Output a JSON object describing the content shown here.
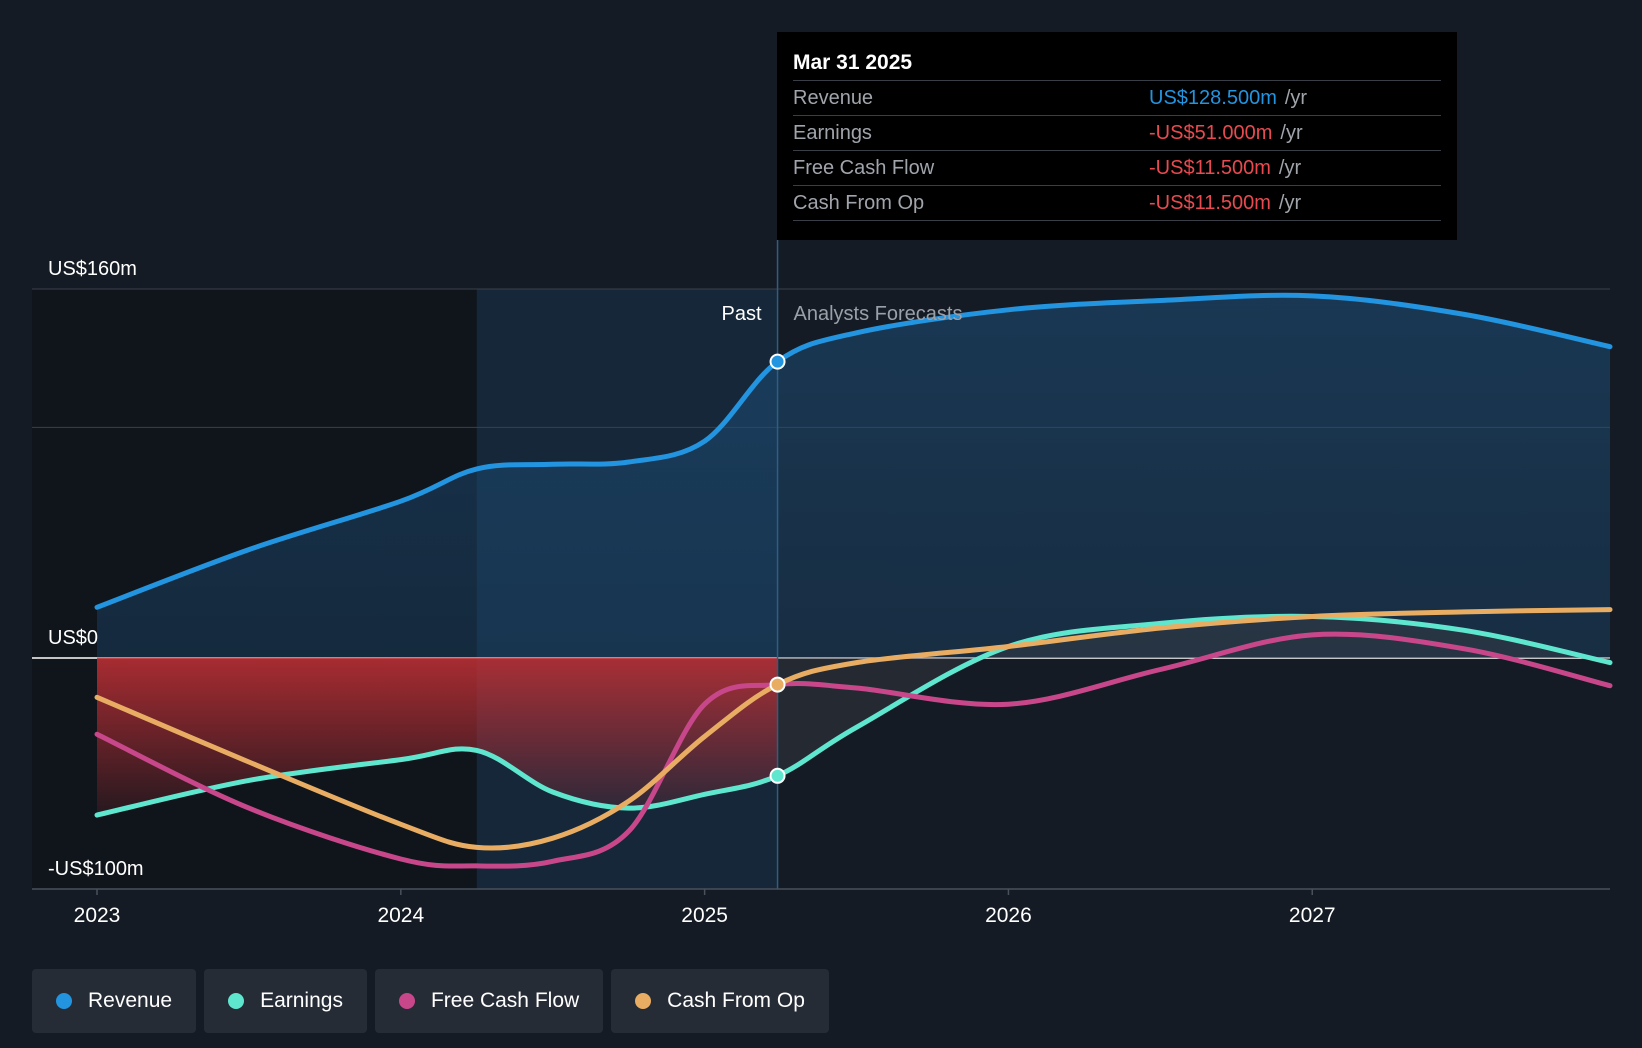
{
  "chart_data": {
    "type": "line",
    "x_unit": "year",
    "xlim": [
      2023,
      2027.98
    ],
    "ylim": [
      -100,
      160
    ],
    "y_ticks": [
      {
        "value": 160,
        "label": "US$160m"
      },
      {
        "value": 0,
        "label": "US$0"
      },
      {
        "value": -100,
        "label": "-US$100m"
      }
    ],
    "x_ticks": [
      {
        "value": 2023,
        "label": "2023"
      },
      {
        "value": 2024,
        "label": "2024"
      },
      {
        "value": 2025,
        "label": "2025"
      },
      {
        "value": 2026,
        "label": "2026"
      },
      {
        "value": 2027,
        "label": "2027"
      }
    ],
    "gridlines_y": [
      160,
      100,
      0,
      -100
    ],
    "past_label": "Past",
    "forecast_label": "Analysts Forecasts",
    "past_shade_start": 2024.25,
    "divider_x": 2025.24,
    "series": [
      {
        "name": "Revenue",
        "color": "#2394df",
        "points": [
          [
            2023,
            22
          ],
          [
            2023.5,
            47
          ],
          [
            2024,
            68
          ],
          [
            2024.25,
            82
          ],
          [
            2024.5,
            84
          ],
          [
            2024.75,
            85
          ],
          [
            2025,
            94
          ],
          [
            2025.24,
            128.5
          ],
          [
            2025.5,
            141
          ],
          [
            2026,
            151
          ],
          [
            2026.5,
            155
          ],
          [
            2027,
            157
          ],
          [
            2027.5,
            149
          ],
          [
            2027.98,
            135
          ]
        ]
      },
      {
        "name": "Earnings",
        "color": "#5fe6cf",
        "points": [
          [
            2023,
            -68
          ],
          [
            2023.5,
            -53
          ],
          [
            2024,
            -44
          ],
          [
            2024.25,
            -40
          ],
          [
            2024.5,
            -58
          ],
          [
            2024.75,
            -65
          ],
          [
            2025,
            -59
          ],
          [
            2025.24,
            -51
          ],
          [
            2025.5,
            -30
          ],
          [
            2026,
            5
          ],
          [
            2026.5,
            15
          ],
          [
            2027,
            18
          ],
          [
            2027.5,
            12
          ],
          [
            2027.98,
            -2
          ]
        ]
      },
      {
        "name": "Free Cash Flow",
        "color": "#c8478b",
        "points": [
          [
            2023,
            -33
          ],
          [
            2023.5,
            -65
          ],
          [
            2024,
            -87
          ],
          [
            2024.25,
            -90
          ],
          [
            2024.5,
            -88
          ],
          [
            2024.75,
            -75
          ],
          [
            2025,
            -20
          ],
          [
            2025.24,
            -11.5
          ],
          [
            2025.5,
            -13
          ],
          [
            2026,
            -20
          ],
          [
            2026.5,
            -5
          ],
          [
            2027,
            10
          ],
          [
            2027.5,
            4
          ],
          [
            2027.98,
            -12
          ]
        ]
      },
      {
        "name": "Cash From Op",
        "color": "#e8ad62",
        "points": [
          [
            2023,
            -17
          ],
          [
            2023.5,
            -45
          ],
          [
            2024,
            -72
          ],
          [
            2024.25,
            -82
          ],
          [
            2024.5,
            -78
          ],
          [
            2024.75,
            -62
          ],
          [
            2025,
            -34
          ],
          [
            2025.24,
            -11.5
          ],
          [
            2025.5,
            -2
          ],
          [
            2026,
            5
          ],
          [
            2026.5,
            13
          ],
          [
            2027,
            18
          ],
          [
            2027.5,
            20
          ],
          [
            2027.98,
            21
          ]
        ]
      }
    ]
  },
  "tooltip": {
    "date": "Mar 31 2025",
    "rows": [
      {
        "label": "Revenue",
        "value": "US$128.500m",
        "unit": "/yr",
        "color": "#2394df"
      },
      {
        "label": "Earnings",
        "value": "-US$51.000m",
        "unit": "/yr",
        "color": "#e84a4f"
      },
      {
        "label": "Free Cash Flow",
        "value": "-US$11.500m",
        "unit": "/yr",
        "color": "#e84a4f"
      },
      {
        "label": "Cash From Op",
        "value": "-US$11.500m",
        "unit": "/yr",
        "color": "#e84a4f"
      }
    ]
  },
  "legend": [
    {
      "label": "Revenue",
      "color": "#2394df"
    },
    {
      "label": "Earnings",
      "color": "#5fe6cf"
    },
    {
      "label": "Free Cash Flow",
      "color": "#c8478b"
    },
    {
      "label": "Cash From Op",
      "color": "#e8ad62"
    }
  ]
}
